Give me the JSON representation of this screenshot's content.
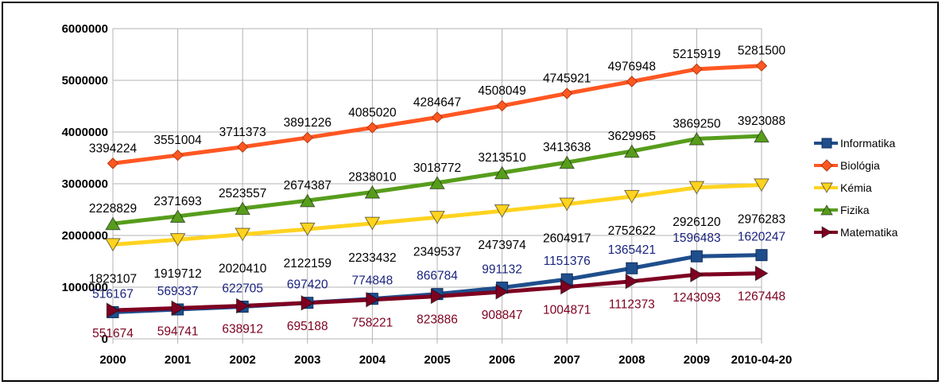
{
  "chart_data": {
    "type": "line",
    "categories": [
      "2000",
      "2001",
      "2002",
      "2003",
      "2004",
      "2005",
      "2006",
      "2007",
      "2008",
      "2009",
      "2010-04-20"
    ],
    "ylim": [
      0,
      6000000
    ],
    "yticks": [
      "0",
      "1000000",
      "2000000",
      "3000000",
      "4000000",
      "5000000",
      "6000000"
    ],
    "grid": true,
    "legend_position": "right",
    "series": [
      {
        "name": "Informatika",
        "color": "#1f4e8c",
        "label_color": "#1a237e",
        "marker": "square",
        "values": [
          516167,
          569337,
          622705,
          697420,
          774848,
          866784,
          991132,
          1151376,
          1365421,
          1596483,
          1620247
        ],
        "labels": [
          "516167",
          "569337",
          "622705",
          "697420",
          "774848",
          "866784",
          "991132",
          "1151376",
          "1365421",
          "1596483",
          "1620247"
        ]
      },
      {
        "name": "Biológia",
        "color": "#ff5722",
        "label_color": "#000000",
        "marker": "diamond",
        "values": [
          3394224,
          3551004,
          3711373,
          3891226,
          4085020,
          4284647,
          4508049,
          4745921,
          4976948,
          5215919,
          5281500
        ],
        "labels": [
          "3394224",
          "3551004",
          "3711373",
          "3891226",
          "4085020",
          "4284647",
          "4508049",
          "4745921",
          "4976948",
          "5215919",
          "5281500"
        ]
      },
      {
        "name": "Kémia",
        "color": "#ffd320",
        "label_color": "#000000",
        "marker": "triangle-down",
        "values": [
          1823107,
          1919712,
          2020410,
          2122159,
          2233432,
          2349537,
          2473974,
          2604917,
          2752622,
          2926120,
          2976283
        ],
        "labels": [
          "1823107",
          "1919712",
          "2020410",
          "2122159",
          "2233432",
          "2349537",
          "2473974",
          "2604917",
          "2752622",
          "2926120",
          "2976283"
        ]
      },
      {
        "name": "Fizika",
        "color": "#579d1c",
        "label_color": "#000000",
        "marker": "triangle-up",
        "values": [
          2228829,
          2371693,
          2523557,
          2674387,
          2838010,
          3018772,
          3213510,
          3413638,
          3629965,
          3869250,
          3923088
        ],
        "labels": [
          "2228829",
          "2371693",
          "2523557",
          "2674387",
          "2838010",
          "3018772",
          "3213510",
          "3413638",
          "3629965",
          "3869250",
          "3923088"
        ]
      },
      {
        "name": "Matematika",
        "color": "#7e0021",
        "label_color": "#7e0021",
        "marker": "triangle-right",
        "values": [
          551674,
          594741,
          638912,
          695188,
          758221,
          823886,
          908847,
          1004871,
          1112373,
          1243093,
          1267448
        ],
        "labels": [
          "551674",
          "594741",
          "638912",
          "695188",
          "758221",
          "823886",
          "908847",
          "1004871",
          "1112373",
          "1243093",
          "1267448"
        ]
      }
    ]
  }
}
